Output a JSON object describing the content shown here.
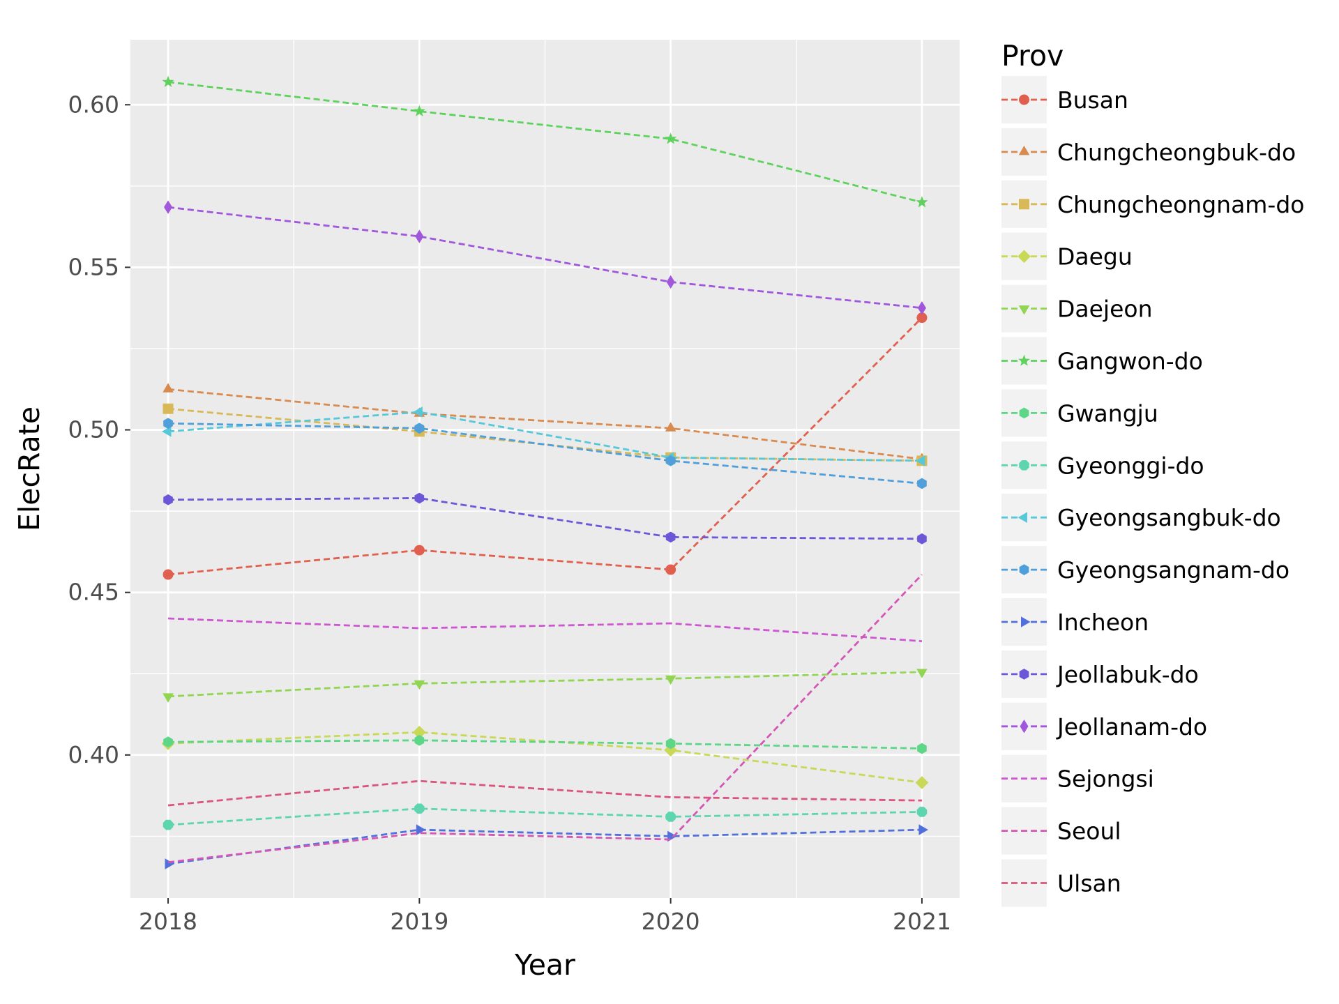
{
  "chart_data": {
    "type": "line",
    "xlabel": "Year",
    "ylabel": "ElecRate",
    "x": [
      2018,
      2019,
      2020,
      2021
    ],
    "x_ticks": [
      "2018",
      "2019",
      "2020",
      "2021"
    ],
    "y_ticks": [
      "0.40",
      "0.45",
      "0.50",
      "0.55",
      "0.60"
    ],
    "xlim": [
      2017.85,
      2021.15
    ],
    "ylim": [
      0.356,
      0.62
    ],
    "grid": true,
    "legend_position": "right",
    "legend_title": "Prov",
    "panel_color": "#ebebeb",
    "series": [
      {
        "name": "Busan",
        "color": "#e15f4e",
        "marker": "circle",
        "values": [
          0.4555,
          0.463,
          0.457,
          0.5345
        ]
      },
      {
        "name": "Chungcheongbuk-do",
        "color": "#d98a4f",
        "marker": "triangle-up",
        "values": [
          0.5125,
          0.505,
          0.5005,
          0.491
        ]
      },
      {
        "name": "Chungcheongnam-do",
        "color": "#d9b957",
        "marker": "square",
        "values": [
          0.5065,
          0.4995,
          0.4915,
          0.4905
        ]
      },
      {
        "name": "Daegu",
        "color": "#c9d857",
        "marker": "diamond",
        "values": [
          0.4035,
          0.407,
          0.4015,
          0.3915
        ]
      },
      {
        "name": "Daejeon",
        "color": "#91d552",
        "marker": "triangle-down",
        "values": [
          0.418,
          0.422,
          0.4235,
          0.4255
        ]
      },
      {
        "name": "Gangwon-do",
        "color": "#5fd15d",
        "marker": "star",
        "values": [
          0.607,
          0.598,
          0.5895,
          0.57
        ]
      },
      {
        "name": "Gwangju",
        "color": "#5dd688",
        "marker": "hexagon",
        "values": [
          0.404,
          0.4045,
          0.4035,
          0.402
        ]
      },
      {
        "name": "Gyeonggi-do",
        "color": "#5dd6b0",
        "marker": "octagon",
        "values": [
          0.3785,
          0.3835,
          0.381,
          0.3825
        ]
      },
      {
        "name": "Gyeongsangbuk-do",
        "color": "#56c8d9",
        "marker": "triangle-left",
        "values": [
          0.4995,
          0.5055,
          0.4915,
          0.4905
        ]
      },
      {
        "name": "Gyeongsangnam-do",
        "color": "#4f9fdb",
        "marker": "hexagon",
        "values": [
          0.502,
          0.5005,
          0.4905,
          0.4835
        ]
      },
      {
        "name": "Incheon",
        "color": "#5170db",
        "marker": "triangle-right",
        "values": [
          0.3665,
          0.377,
          0.375,
          0.377
        ]
      },
      {
        "name": "Jeollabuk-do",
        "color": "#6c57d9",
        "marker": "hexagon",
        "values": [
          0.4785,
          0.479,
          0.467,
          0.4665
        ]
      },
      {
        "name": "Jeollanam-do",
        "color": "#a057db",
        "marker": "thin-diamond",
        "values": [
          0.5685,
          0.5595,
          0.5455,
          0.5375
        ]
      },
      {
        "name": "Sejongsi",
        "color": "#cd57d1",
        "marker": "none",
        "values": [
          0.442,
          0.439,
          0.4405,
          0.435
        ]
      },
      {
        "name": "Seoul",
        "color": "#d457b4",
        "marker": "none",
        "values": [
          0.367,
          0.376,
          0.374,
          0.4555
        ]
      },
      {
        "name": "Ulsan",
        "color": "#d9557c",
        "marker": "none",
        "values": [
          0.3845,
          0.392,
          0.387,
          0.386
        ]
      }
    ]
  }
}
